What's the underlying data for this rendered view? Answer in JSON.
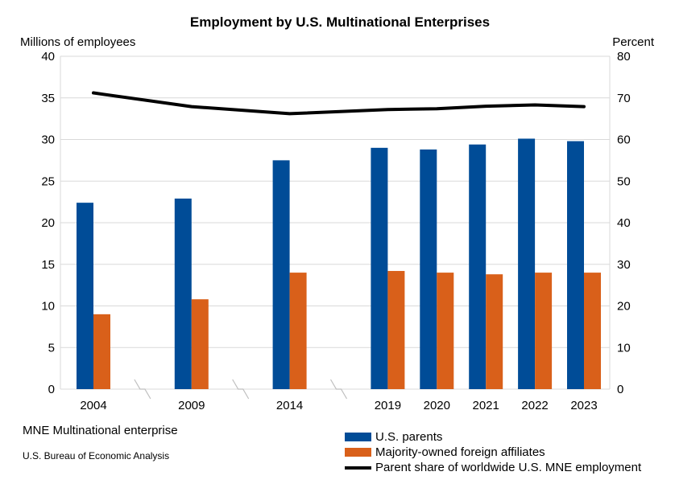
{
  "chart_data": {
    "type": "bar",
    "title": "Employment by U.S. Multinational Enterprises",
    "ylabel_left": "Millions of employees",
    "ylabel_right": "Percent",
    "ylim_left": [
      0,
      40
    ],
    "ylim_right": [
      0,
      80
    ],
    "yticks_left": [
      0,
      5,
      10,
      15,
      20,
      25,
      30,
      35,
      40
    ],
    "yticks_right": [
      0,
      10,
      20,
      30,
      40,
      50,
      60,
      70,
      80
    ],
    "grid": true,
    "axis_breaks": [
      "2004-2009",
      "2009-2014",
      "2014-2019"
    ],
    "categories": [
      "2004",
      "2009",
      "2014",
      "2019",
      "2020",
      "2021",
      "2022",
      "2023"
    ],
    "series": [
      {
        "name": "U.S. parents",
        "type": "bar",
        "axis": "left",
        "color": "#004C97",
        "values": [
          22.4,
          22.9,
          27.5,
          29.0,
          28.8,
          29.4,
          30.1,
          29.8
        ]
      },
      {
        "name": "Majority-owned foreign affiliates",
        "type": "bar",
        "axis": "left",
        "color": "#D9601A",
        "values": [
          9.0,
          10.8,
          14.0,
          14.2,
          14.0,
          13.8,
          14.0,
          14.0
        ]
      },
      {
        "name": "Parent share of worldwide U.S. MNE employment",
        "type": "line",
        "axis": "right",
        "color": "#000000",
        "values": [
          71.2,
          67.9,
          66.2,
          67.2,
          67.4,
          68.0,
          68.3,
          67.9
        ]
      }
    ],
    "legend_position": "bottom-right"
  },
  "footnote": "MNE Multinational enterprise",
  "source": "U.S. Bureau of Economic Analysis"
}
